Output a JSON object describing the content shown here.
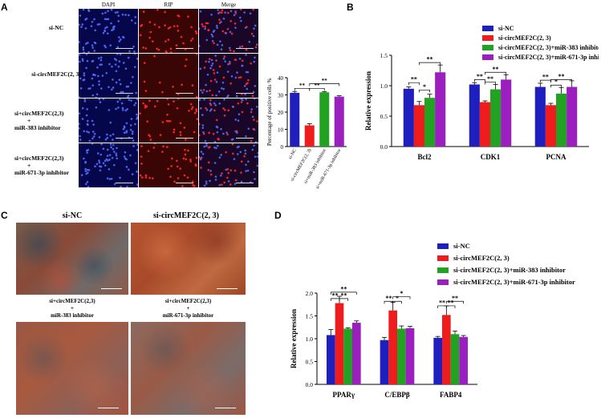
{
  "panels": {
    "a": {
      "letter": "A",
      "column_headers": [
        "DAPI",
        "RIP",
        "Merge"
      ],
      "row_labels": [
        [
          "si-NC"
        ],
        [
          "si-circMEF2C(2, 3)"
        ],
        [
          "si+circMEF2C(2,3)",
          "+",
          "miR-383 inhibitor"
        ],
        [
          "si+circMEF2C(2,3)",
          "+",
          "miR-671-3p inhibitor"
        ]
      ]
    },
    "b": {
      "letter": "B"
    },
    "c": {
      "letter": "C",
      "labels": {
        "top_left": "si-NC",
        "top_right": "si-circMEF2C(2, 3)",
        "bottom_left": [
          "si+circMEF2C(2,3)",
          "+",
          "miR-383 inhibitor"
        ],
        "bottom_right": [
          "si+circMEF2C(2,3)",
          "+",
          "miR-671-3p inhibitor"
        ]
      }
    },
    "d": {
      "letter": "D"
    }
  },
  "colors": {
    "blue": "#1f1fbf",
    "red": "#ee1c1c",
    "green": "#22a122",
    "purple": "#9b1fbf"
  },
  "chart_data": [
    {
      "id": "A-bar",
      "type": "bar",
      "ylabel": "Percentage of positive cells %",
      "ylim": [
        0,
        40
      ],
      "yticks": [
        0,
        10,
        20,
        30,
        40
      ],
      "categories": [
        "si-NC",
        "si-circMEF2C(2, 3)",
        "si+miR-383 inhibitor",
        "si+miR-671-3p inhibitor"
      ],
      "values": [
        31.2,
        12.3,
        31.5,
        29.0
      ],
      "errors": [
        0.8,
        1.0,
        0.4,
        0.5
      ],
      "colors": [
        "#1f1fbf",
        "#ee1c1c",
        "#22a122",
        "#9b1fbf"
      ],
      "significance": [
        {
          "from": 0,
          "to": 1,
          "label": "**"
        },
        {
          "from": 1,
          "to": 2,
          "label": "**"
        },
        {
          "from": 1,
          "to": 3,
          "label": "**"
        }
      ]
    },
    {
      "id": "B",
      "type": "bar",
      "ylabel": "Relative expression",
      "ylim": [
        0,
        1.5
      ],
      "yticks": [
        0.0,
        0.5,
        1.0,
        1.5
      ],
      "categories": [
        "Bcl2",
        "CDK1",
        "PCNA"
      ],
      "series": [
        {
          "name": "si-NC",
          "values": [
            0.95,
            1.02,
            0.98
          ],
          "errors": [
            0.03,
            0.03,
            0.06
          ]
        },
        {
          "name": "si-circMEF2C(2, 3)",
          "values": [
            0.68,
            0.73,
            0.68
          ],
          "errors": [
            0.06,
            0.02,
            0.03
          ]
        },
        {
          "name": "si-circMEF2C(2, 3)+miR-383 inhibitor",
          "values": [
            0.8,
            0.94,
            0.87
          ],
          "errors": [
            0.06,
            0.08,
            0.1
          ]
        },
        {
          "name": "si-circMEF2C(2, 3)+miR-671-3p inhibitor",
          "values": [
            1.22,
            1.1,
            0.98
          ],
          "errors": [
            0.12,
            0.08,
            0.1
          ]
        }
      ],
      "significance": [
        {
          "category": 0,
          "from": 0,
          "to": 1,
          "label": "**",
          "level": 1.05
        },
        {
          "category": 0,
          "from": 1,
          "to": 2,
          "label": "*",
          "level": 0.93
        },
        {
          "category": 0,
          "from": 1,
          "to": 3,
          "label": "**",
          "level": 1.38
        },
        {
          "category": 1,
          "from": 0,
          "to": 1,
          "label": "**",
          "level": 1.1
        },
        {
          "category": 1,
          "from": 1,
          "to": 2,
          "label": "**",
          "level": 1.06
        },
        {
          "category": 1,
          "from": 1,
          "to": 3,
          "label": "**",
          "level": 1.22
        },
        {
          "category": 2,
          "from": 0,
          "to": 1,
          "label": "**",
          "level": 1.09
        },
        {
          "category": 2,
          "from": 1,
          "to": 2,
          "label": "*",
          "level": 1.01
        },
        {
          "category": 2,
          "from": 1,
          "to": 3,
          "label": "**",
          "level": 1.1
        }
      ],
      "legend": "top"
    },
    {
      "id": "D",
      "type": "bar",
      "ylabel": "Relative expression",
      "ylim": [
        0,
        2.0
      ],
      "yticks": [
        0.0,
        0.5,
        1.0,
        1.5,
        2.0
      ],
      "categories": [
        "PPARγ",
        "C/EBPβ",
        "FABP4"
      ],
      "series": [
        {
          "name": "si-NC",
          "values": [
            1.08,
            0.97,
            1.02
          ],
          "errors": [
            0.12,
            0.06,
            0.03
          ]
        },
        {
          "name": "si-circMEF2C(2, 3)",
          "values": [
            1.78,
            1.62,
            1.52
          ],
          "errors": [
            0.15,
            0.18,
            0.2
          ]
        },
        {
          "name": "si-circMEF2C(2, 3)+miR-383 inhibitor",
          "values": [
            1.22,
            1.22,
            1.1
          ],
          "errors": [
            0.02,
            0.06,
            0.07
          ]
        },
        {
          "name": "si-circMEF2C(2, 3)+miR-671-3p inhibitor",
          "values": [
            1.35,
            1.23,
            1.04
          ],
          "errors": [
            0.04,
            0.04,
            0.03
          ]
        }
      ],
      "significance": [
        {
          "category": 0,
          "from": 0,
          "to": 1,
          "label": "**",
          "level": 1.88
        },
        {
          "category": 0,
          "from": 1,
          "to": 2,
          "label": "**",
          "level": 1.88
        },
        {
          "category": 0,
          "from": 0,
          "to": 3,
          "label": "**",
          "level": 2.02
        },
        {
          "category": 1,
          "from": 0,
          "to": 1,
          "label": "**",
          "level": 1.82
        },
        {
          "category": 1,
          "from": 1,
          "to": 2,
          "label": "*",
          "level": 1.82
        },
        {
          "category": 1,
          "from": 1,
          "to": 3,
          "label": "*",
          "level": 1.92
        },
        {
          "category": 2,
          "from": 0,
          "to": 1,
          "label": "**",
          "level": 1.72
        },
        {
          "category": 2,
          "from": 1,
          "to": 2,
          "label": "**",
          "level": 1.72
        },
        {
          "category": 2,
          "from": 1,
          "to": 3,
          "label": "**",
          "level": 1.82
        }
      ],
      "legend": "top"
    }
  ]
}
